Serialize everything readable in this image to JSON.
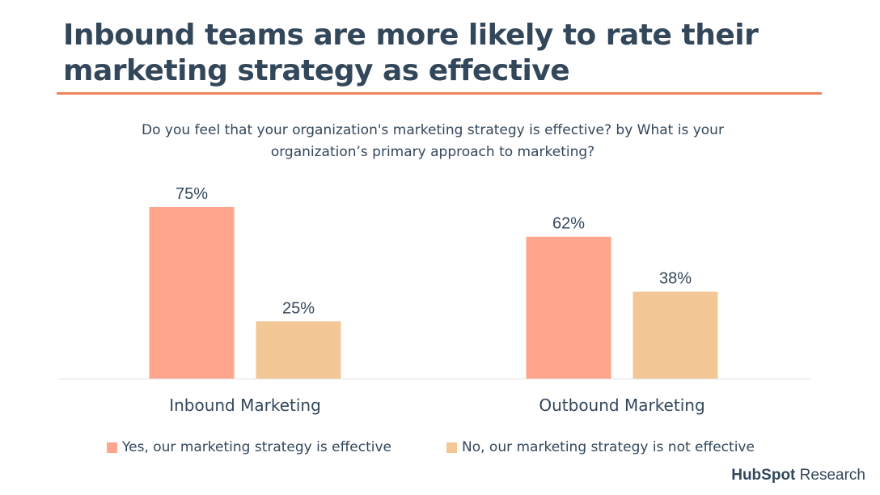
{
  "colors": {
    "accent_rule": "#f2845c",
    "yes": "#ffa58c",
    "no": "#f4c896",
    "text": "#33475b",
    "axis": "#e0e0e0"
  },
  "title": "Inbound teams are more likely to rate their marketing strategy as effective",
  "subtitle": "Do you feel that your organization's marketing strategy is effective? by What is your organization’s primary approach to marketing?",
  "brand": {
    "name": "HubSpot",
    "suffix": "Research"
  },
  "chart_data": {
    "type": "bar",
    "title": "Inbound teams are more likely to rate their marketing strategy as effective",
    "subtitle": "Do you feel that your organization's marketing strategy is effective? by What is your organization’s primary approach to marketing?",
    "categories": [
      "Inbound Marketing",
      "Outbound Marketing"
    ],
    "series": [
      {
        "name": "Yes, our marketing strategy is effective",
        "values": [
          75,
          62
        ],
        "labels": [
          "75%",
          "62%"
        ],
        "color": "#ffa58c"
      },
      {
        "name": "No, our marketing strategy is not effective",
        "values": [
          25,
          38
        ],
        "labels": [
          "25%",
          "38%"
        ],
        "color": "#f4c896"
      }
    ],
    "ylim": [
      0,
      75
    ],
    "grid": false,
    "legend": "bottom"
  }
}
